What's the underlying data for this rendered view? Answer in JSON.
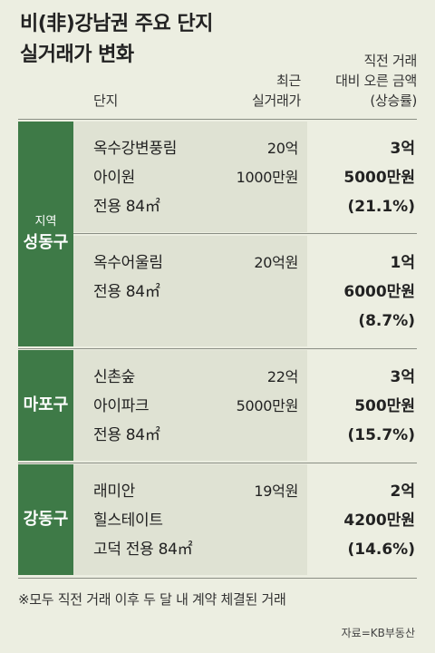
{
  "title": {
    "line1": "비(非)강남권 주요 단지",
    "line2": "실거래가 변화"
  },
  "headers": {
    "name": "단지",
    "price_line1": "최근",
    "price_line2": "실거래가",
    "rise_line1": "직전 거래",
    "rise_line2": "대비 오른 금액",
    "rise_line3": "(상승률)"
  },
  "districts": [
    {
      "small_label": "지역",
      "name": "성동구",
      "rows": [
        {
          "name_lines": [
            "옥수강변풍림",
            "아이원",
            "전용 84㎡"
          ],
          "price_lines": [
            "20억",
            "1000만원"
          ],
          "rise_lines": [
            "3억",
            "5000만원",
            "(21.1%)"
          ]
        },
        {
          "name_lines": [
            "옥수어울림",
            "전용 84㎡"
          ],
          "price_lines": [
            "20억원"
          ],
          "rise_lines": [
            "1억",
            "6000만원",
            "(8.7%)"
          ]
        }
      ]
    },
    {
      "name": "마포구",
      "rows": [
        {
          "name_lines": [
            "신촌숲",
            "아이파크",
            "전용 84㎡"
          ],
          "price_lines": [
            "22억",
            "5000만원"
          ],
          "rise_lines": [
            "3억",
            "500만원",
            "(15.7%)"
          ]
        }
      ]
    },
    {
      "name": "강동구",
      "rows": [
        {
          "name_lines": [
            "래미안",
            "힐스테이트",
            "고덕 전용 84㎡"
          ],
          "price_lines": [
            "19억원"
          ],
          "rise_lines": [
            "2억",
            "4200만원",
            "(14.6%)"
          ]
        }
      ]
    }
  ],
  "footnote": "※모두 직전 거래 이후 두 달 내 계약 체결된 거래",
  "source": "자료=KB부동산",
  "colors": {
    "district_bg": "#3e7a47",
    "cell_bg": "#dfe2d3",
    "page_bg": "#eceee1"
  }
}
